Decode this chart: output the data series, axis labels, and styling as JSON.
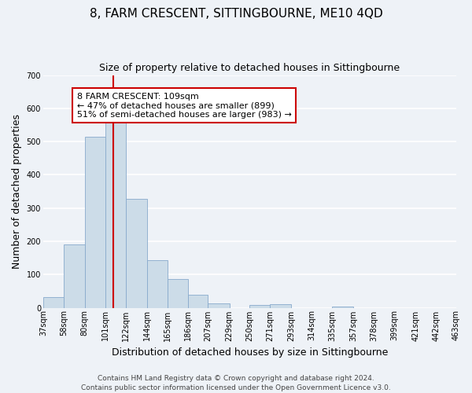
{
  "title": "8, FARM CRESCENT, SITTINGBOURNE, ME10 4QD",
  "subtitle": "Size of property relative to detached houses in Sittingbourne",
  "xlabel": "Distribution of detached houses by size in Sittingbourne",
  "ylabel": "Number of detached properties",
  "bar_edges": [
    37,
    58,
    80,
    101,
    122,
    144,
    165,
    186,
    207,
    229,
    250,
    271,
    293,
    314,
    335,
    357,
    378,
    399,
    421,
    442,
    463
  ],
  "bar_heights": [
    33,
    190,
    515,
    558,
    328,
    143,
    86,
    40,
    13,
    0,
    8,
    10,
    0,
    0,
    4,
    0,
    0,
    0,
    0,
    0
  ],
  "bar_color": "#ccdce8",
  "bar_edge_color": "#88aacc",
  "vline_x": 109,
  "vline_color": "#cc0000",
  "annotation_text": "8 FARM CRESCENT: 109sqm\n← 47% of detached houses are smaller (899)\n51% of semi-detached houses are larger (983) →",
  "annotation_box_color": "#ffffff",
  "annotation_box_edge": "#cc0000",
  "ylim": [
    0,
    700
  ],
  "yticks": [
    0,
    100,
    200,
    300,
    400,
    500,
    600,
    700
  ],
  "xlim": [
    37,
    463
  ],
  "tick_labels": [
    "37sqm",
    "58sqm",
    "80sqm",
    "101sqm",
    "122sqm",
    "144sqm",
    "165sqm",
    "186sqm",
    "207sqm",
    "229sqm",
    "250sqm",
    "271sqm",
    "293sqm",
    "314sqm",
    "335sqm",
    "357sqm",
    "378sqm",
    "399sqm",
    "421sqm",
    "442sqm",
    "463sqm"
  ],
  "footer": "Contains HM Land Registry data © Crown copyright and database right 2024.\nContains public sector information licensed under the Open Government Licence v3.0.",
  "background_color": "#eef2f7",
  "grid_color": "#ffffff",
  "title_fontsize": 11,
  "subtitle_fontsize": 9,
  "axis_label_fontsize": 9,
  "tick_fontsize": 7,
  "footer_fontsize": 6.5,
  "annotation_fontsize": 8
}
